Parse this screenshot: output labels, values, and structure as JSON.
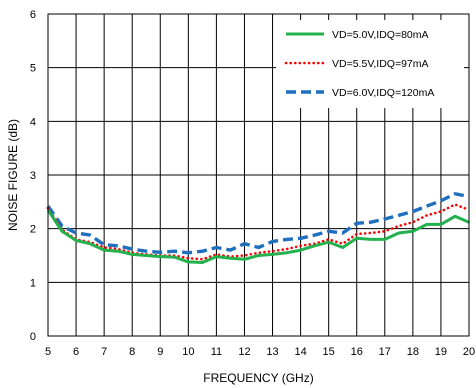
{
  "chart_data": {
    "type": "line",
    "xlabel": "FREQUENCY (GHz)",
    "ylabel": "NOISE FIGURE (dB)",
    "xlim": [
      5,
      20
    ],
    "ylim": [
      0,
      6
    ],
    "xticks": [
      5,
      6,
      7,
      8,
      9,
      10,
      11,
      12,
      13,
      14,
      15,
      16,
      17,
      18,
      19,
      20
    ],
    "yticks": [
      0,
      1,
      2,
      3,
      4,
      5,
      6
    ],
    "grid": true,
    "legend_position": "top-right",
    "series": [
      {
        "name": "VD=5.0V,IDQ=80mA",
        "color": "#22b14c",
        "style": "solid",
        "x": [
          5,
          5.5,
          6,
          6.5,
          7,
          7.5,
          8,
          8.5,
          9,
          9.5,
          10,
          10.5,
          11,
          11.5,
          12,
          12.5,
          13,
          13.5,
          14,
          14.5,
          15,
          15.5,
          16,
          16.5,
          17,
          17.5,
          18,
          18.5,
          19,
          19.5,
          20
        ],
        "values": [
          2.35,
          1.95,
          1.78,
          1.72,
          1.6,
          1.58,
          1.52,
          1.5,
          1.48,
          1.47,
          1.38,
          1.37,
          1.48,
          1.45,
          1.43,
          1.5,
          1.52,
          1.55,
          1.6,
          1.68,
          1.75,
          1.65,
          1.82,
          1.8,
          1.8,
          1.92,
          1.95,
          2.08,
          2.08,
          2.23,
          2.12
        ]
      },
      {
        "name": "VD=5.5V,IDQ=97mA",
        "color": "#ff0000",
        "style": "dotted",
        "x": [
          5,
          5.5,
          6,
          6.5,
          7,
          7.5,
          8,
          8.5,
          9,
          9.5,
          10,
          10.5,
          11,
          11.5,
          12,
          12.5,
          13,
          13.5,
          14,
          14.5,
          15,
          15.5,
          16,
          16.5,
          17,
          17.5,
          18,
          18.5,
          19,
          19.5,
          20
        ],
        "values": [
          2.38,
          1.98,
          1.8,
          1.75,
          1.65,
          1.62,
          1.55,
          1.52,
          1.5,
          1.5,
          1.45,
          1.43,
          1.52,
          1.48,
          1.5,
          1.55,
          1.58,
          1.62,
          1.68,
          1.72,
          1.8,
          1.72,
          1.9,
          1.92,
          1.95,
          2.05,
          2.12,
          2.25,
          2.32,
          2.45,
          2.35
        ]
      },
      {
        "name": "VD=6.0V,IDQ=120mA",
        "color": "#1f6fbf",
        "style": "dashed",
        "x": [
          5,
          5.5,
          6,
          6.5,
          7,
          7.5,
          8,
          8.5,
          9,
          9.5,
          10,
          10.5,
          11,
          11.5,
          12,
          12.5,
          13,
          13.5,
          14,
          14.5,
          15,
          15.5,
          16,
          16.5,
          17,
          17.5,
          18,
          18.5,
          19,
          19.5,
          20
        ],
        "values": [
          2.42,
          2.05,
          1.92,
          1.88,
          1.7,
          1.68,
          1.62,
          1.58,
          1.56,
          1.58,
          1.55,
          1.58,
          1.65,
          1.6,
          1.72,
          1.65,
          1.76,
          1.8,
          1.82,
          1.88,
          1.95,
          1.92,
          2.1,
          2.12,
          2.18,
          2.25,
          2.32,
          2.42,
          2.52,
          2.65,
          2.6
        ]
      }
    ]
  }
}
